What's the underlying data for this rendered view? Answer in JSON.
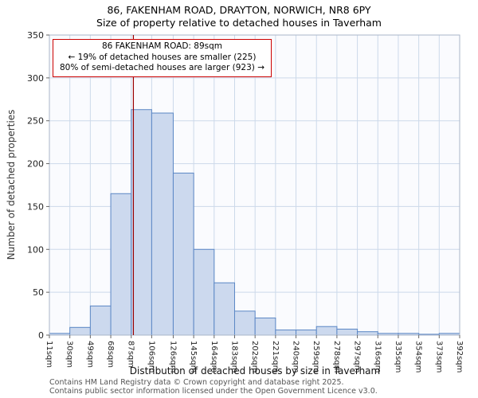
{
  "title": "86, FAKENHAM ROAD, DRAYTON, NORWICH, NR8 6PY",
  "subtitle": "Size of property relative to detached houses in Taverham",
  "annotation": {
    "line1": "86 FAKENHAM ROAD: 89sqm",
    "line2": "← 19% of detached houses are smaller (225)",
    "line3": "80% of semi-detached houses are larger (923) →"
  },
  "footer": {
    "line1": "Contains HM Land Registry data © Crown copyright and database right 2025.",
    "line2": "Contains public sector information licensed under the Open Government Licence v3.0."
  },
  "chart_data": {
    "type": "bar",
    "title": "86, FAKENHAM ROAD, DRAYTON, NORWICH, NR8 6PY — Size of property relative to detached houses in Taverham",
    "xlabel": "Distribution of detached houses by size in Taverham",
    "ylabel": "Number of detached properties",
    "ylim": [
      0,
      350
    ],
    "yticks": [
      0,
      50,
      100,
      150,
      200,
      250,
      300,
      350
    ],
    "grid": true,
    "legend": "none",
    "bin_edges": [
      11,
      30,
      49,
      68,
      87,
      106,
      126,
      145,
      164,
      183,
      202,
      221,
      240,
      259,
      278,
      297,
      316,
      335,
      354,
      373,
      392
    ],
    "tick_labels": [
      "11sqm",
      "30sqm",
      "49sqm",
      "68sqm",
      "87sqm",
      "106sqm",
      "126sqm",
      "145sqm",
      "164sqm",
      "183sqm",
      "202sqm",
      "221sqm",
      "240sqm",
      "259sqm",
      "278sqm",
      "297sqm",
      "316sqm",
      "335sqm",
      "354sqm",
      "373sqm",
      "392sqm"
    ],
    "values": [
      2,
      9,
      34,
      165,
      263,
      259,
      189,
      100,
      61,
      28,
      20,
      6,
      6,
      10,
      7,
      4,
      2,
      2,
      1,
      2
    ],
    "marker_value": 89,
    "colors": {
      "bar_fill": "#ccd9ee",
      "bar_stroke": "#5b87c5",
      "grid": "#ccd9ea",
      "spine": "#aab6c8",
      "marker": "#990000",
      "annotation_border": "#cc0000",
      "plot_bg": "#fafbfe"
    }
  }
}
